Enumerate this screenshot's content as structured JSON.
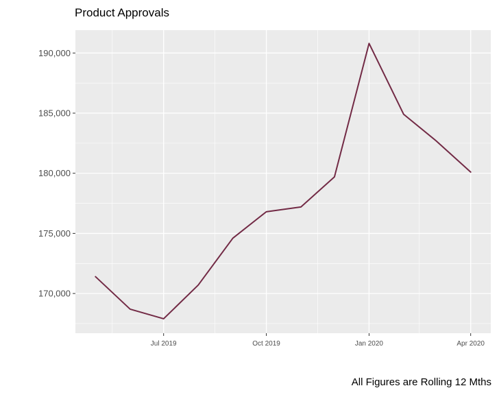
{
  "chart_data": {
    "type": "line",
    "title": "Product Approvals",
    "caption": "All Figures are Rolling 12 Mths",
    "xlabel": "",
    "ylabel": "",
    "x": [
      "2019-05-01",
      "2019-06-01",
      "2019-07-01",
      "2019-08-01",
      "2019-09-01",
      "2019-10-01",
      "2019-11-01",
      "2019-12-01",
      "2020-01-01",
      "2020-02-01",
      "2020-03-01",
      "2020-04-01"
    ],
    "series": [
      {
        "values": [
          171400,
          168700,
          167900,
          170700,
          174600,
          176800,
          177200,
          179700,
          190800,
          184900,
          182700,
          180100
        ],
        "color": "#722a45"
      }
    ],
    "xlim": [
      "2019-04-13",
      "2020-04-19"
    ],
    "ylim": [
      166700,
      191900
    ],
    "x_ticks": [
      {
        "value": "2019-07-01",
        "label": "Jul 2019"
      },
      {
        "value": "2019-10-01",
        "label": "Oct 2019"
      },
      {
        "value": "2020-01-01",
        "label": "Jan 2020"
      },
      {
        "value": "2020-04-01",
        "label": "Apr 2020"
      }
    ],
    "x_minor_ticks": [
      "2019-05-16",
      "2019-08-16",
      "2019-11-16",
      "2020-02-15"
    ],
    "y_ticks": [
      {
        "value": 170000,
        "label": "170,000"
      },
      {
        "value": 175000,
        "label": "175,000"
      },
      {
        "value": 180000,
        "label": "180,000"
      },
      {
        "value": 185000,
        "label": "185,000"
      },
      {
        "value": 190000,
        "label": "190,000"
      }
    ],
    "grid": true,
    "legend": "none",
    "panel_background": "#ebebeb",
    "grid_color": "#ffffff"
  }
}
